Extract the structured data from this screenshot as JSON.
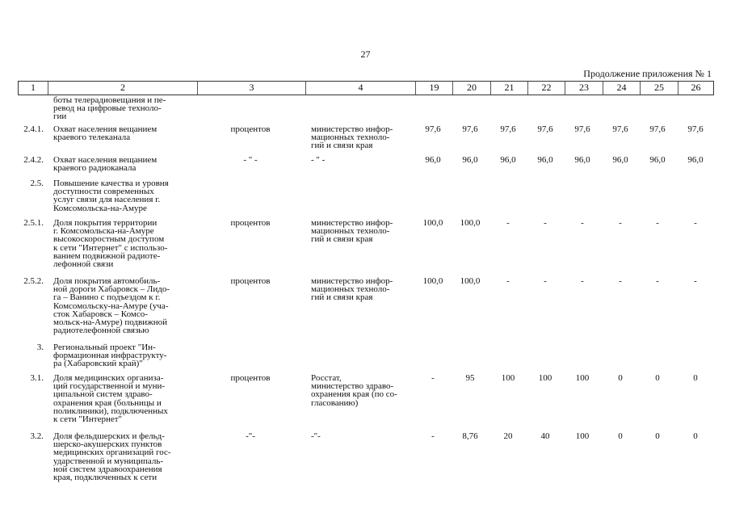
{
  "page_number": "27",
  "continuation": "Продолжение приложения № 1",
  "header": [
    "1",
    "2",
    "3",
    "4",
    "19",
    "20",
    "21",
    "22",
    "23",
    "24",
    "25",
    "26"
  ],
  "rows": [
    {
      "no": "",
      "name": "боты телерадиовещания и пе-\nревод на цифровые техноло-\nгии",
      "unit": "",
      "source": "",
      "values": []
    },
    {
      "no": "2.4.1.",
      "name": "Охват населения вещанием\nкраевого телеканала",
      "unit": "процентов",
      "source": "министерство инфор-\nмационных техноло-\nгий и связи края",
      "values": [
        "97,6",
        "97,6",
        "97,6",
        "97,6",
        "97,6",
        "97,6",
        "97,6",
        "97,6"
      ]
    },
    {
      "no": "2.4.2.",
      "name": "Охват населения вещанием\nкраевого радиоканала",
      "unit": "- \" -",
      "source": "- \" -",
      "values": [
        "96,0",
        "96,0",
        "96,0",
        "96,0",
        "96,0",
        "96,0",
        "96,0",
        "96,0"
      ]
    },
    {
      "no": "2.5.",
      "name": "Повышение качества и уровня\nдоступности современных\nуслуг связи для населения г.\nКомсомольска-на-Амуре",
      "unit": "",
      "source": "",
      "values": []
    },
    {
      "no": "2.5.1.",
      "name": "Доля покрытия территории\nг. Комсомольска-на-Амуре\nвысокоскоростным доступом\nк сети \"Интернет\" с использо-\nванием подвижной радиоте-\nлефонной связи",
      "unit": "процентов",
      "source": "министерство инфор-\nмационных техноло-\nгий и связи края",
      "values": [
        "100,0",
        "100,0",
        "-",
        "-",
        "-",
        "-",
        "-",
        "-"
      ]
    },
    {
      "no": "2.5.2.",
      "name": "Доля покрытия автомобиль-\nной дороги Хабаровск – Лидо-\nга – Ванино с подъездом к г.\nКомсомольску-на-Амуре (уча-\nсток Хабаровск – Комсо-\nмольск-на-Амуре) подвижной\nрадиотелефонной связью",
      "unit": "процентов",
      "source": "министерство инфор-\nмационных техноло-\nгий и связи края",
      "values": [
        "100,0",
        "100,0",
        "-",
        "-",
        "-",
        "-",
        "-",
        "-"
      ]
    },
    {
      "no": "3.",
      "name": "Региональный проект \"Ин-\nформационная инфраструкту-\nра (Хабаровский край)\"",
      "unit": "",
      "source": "",
      "values": []
    },
    {
      "no": "3.1.",
      "name": "Доля медицинских организа-\nций государственной и муни-\nципальной систем здраво-\nохранения края (больницы и\nполиклиники), подключенных\nк сети \"Интернет\"",
      "unit": "процентов",
      "source": "Росстат,\nминистерство здраво-\nохранения края (по со-\nгласованию)",
      "values": [
        "-",
        "95",
        "100",
        "100",
        "100",
        "0",
        "0",
        "0"
      ]
    },
    {
      "no": "3.2.",
      "name": "Доля фельдшерских и фельд-\nшерско-акушерских пунктов\nмедицинских организаций гос-\nударственной и муниципаль-\nной систем здравоохранения\nкрая, подключенных к сети",
      "unit": "-\"-",
      "source": "-\"-",
      "values": [
        "-",
        "8,76",
        "20",
        "40",
        "100",
        "0",
        "0",
        "0"
      ]
    }
  ]
}
